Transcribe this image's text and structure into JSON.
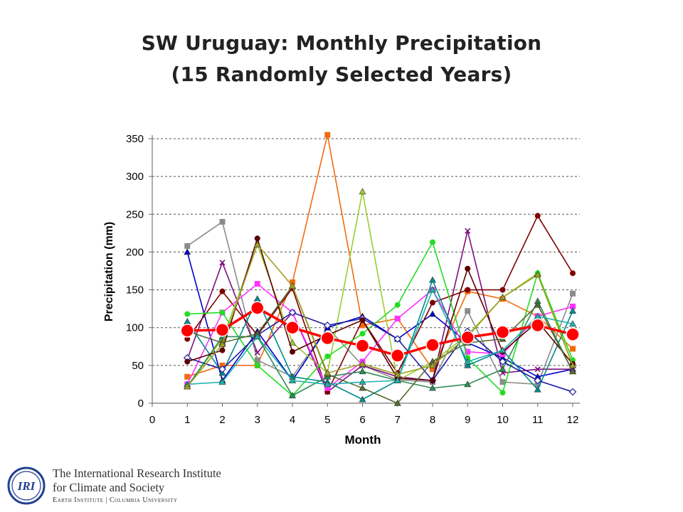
{
  "chart_data": {
    "type": "line",
    "title": "SW Uruguay: Monthly Precipitation",
    "subtitle": "(15 Randomly Selected Years)",
    "xlabel": "Month",
    "ylabel": "Precipitation (mm)",
    "x": [
      1,
      2,
      3,
      4,
      5,
      6,
      7,
      8,
      9,
      10,
      11,
      12
    ],
    "xlim": [
      0,
      12
    ],
    "ylim": [
      0,
      350
    ],
    "xticks": [
      "0",
      "1",
      "2",
      "3",
      "4",
      "5",
      "6",
      "7",
      "8",
      "9",
      "10",
      "11",
      "12"
    ],
    "yticks": [
      "0",
      "50",
      "100",
      "150",
      "200",
      "250",
      "300",
      "350"
    ],
    "grid": "horizontal dashed",
    "legend": "none",
    "series": [
      {
        "color": "#f26b0f",
        "marker": "square",
        "values": [
          35,
          50,
          50,
          160,
          355,
          103,
          112,
          45,
          148,
          138,
          115,
          72
        ]
      },
      {
        "color": "#8b8b8b",
        "marker": "square",
        "values": [
          208,
          240,
          57,
          35,
          100,
          50,
          31,
          28,
          122,
          28,
          25,
          145
        ]
      },
      {
        "color": "#0000cc",
        "marker": "triangle",
        "values": [
          200,
          30,
          95,
          30,
          100,
          115,
          85,
          118,
          80,
          60,
          35,
          45
        ]
      },
      {
        "color": "#7d0f7d",
        "marker": "x",
        "values": [
          58,
          186,
          67,
          120,
          15,
          50,
          35,
          30,
          228,
          40,
          45,
          45
        ]
      },
      {
        "color": "#7f0000",
        "marker": "circle",
        "values": [
          85,
          148,
          90,
          152,
          15,
          110,
          40,
          133,
          150,
          150,
          248,
          172
        ]
      },
      {
        "color": "#9acd32",
        "marker": "triangle",
        "values": [
          22,
          85,
          210,
          80,
          40,
          280,
          30,
          55,
          90,
          140,
          172,
          50
        ]
      },
      {
        "color": "#ff33ff",
        "marker": "square",
        "values": [
          25,
          120,
          158,
          120,
          20,
          55,
          112,
          150,
          68,
          65,
          115,
          128
        ]
      },
      {
        "color": "#22dd22",
        "marker": "circle",
        "values": [
          118,
          120,
          50,
          10,
          62,
          92,
          130,
          213,
          60,
          14,
          172,
          57
        ]
      },
      {
        "color": "#008b8b",
        "marker": "triangle",
        "values": [
          108,
          40,
          138,
          35,
          28,
          5,
          30,
          163,
          50,
          70,
          18,
          122
        ]
      },
      {
        "color": "#2e8b57",
        "marker": "triangle",
        "values": [
          22,
          88,
          88,
          10,
          35,
          42,
          30,
          20,
          25,
          45,
          135,
          42
        ]
      },
      {
        "color": "#2020a0",
        "marker": "diamond",
        "values": [
          60,
          45,
          90,
          120,
          103,
          112,
          85,
          30,
          95,
          55,
          30,
          15
        ]
      },
      {
        "color": "#5a0000",
        "marker": "circle",
        "values": [
          55,
          70,
          218,
          68,
          90,
          110,
          33,
          30,
          178,
          68,
          108,
          52
        ]
      },
      {
        "color": "#556b2f",
        "marker": "triangle",
        "values": [
          95,
          80,
          92,
          155,
          38,
          20,
          0,
          55,
          80,
          85,
          130,
          42
        ]
      },
      {
        "color": "#20b2aa",
        "marker": "triangle",
        "values": [
          25,
          28,
          88,
          30,
          25,
          28,
          30,
          150,
          55,
          70,
          115,
          105
        ]
      },
      {
        "color": "#a0a020",
        "marker": "triangle",
        "values": [
          22,
          78,
          210,
          155,
          40,
          52,
          38,
          50,
          88,
          140,
          170,
          50
        ]
      }
    ],
    "mean_series": {
      "color": "#ff0000",
      "marker": "large-circle",
      "values": [
        96,
        97,
        126,
        100,
        86,
        76,
        63,
        77,
        87,
        94,
        103,
        91
      ]
    }
  },
  "logo": {
    "emblem_text": "IRI",
    "line1": "The International Research Institute",
    "line2": "for Climate and Society",
    "line3": "Earth Institute | Columbia University"
  }
}
